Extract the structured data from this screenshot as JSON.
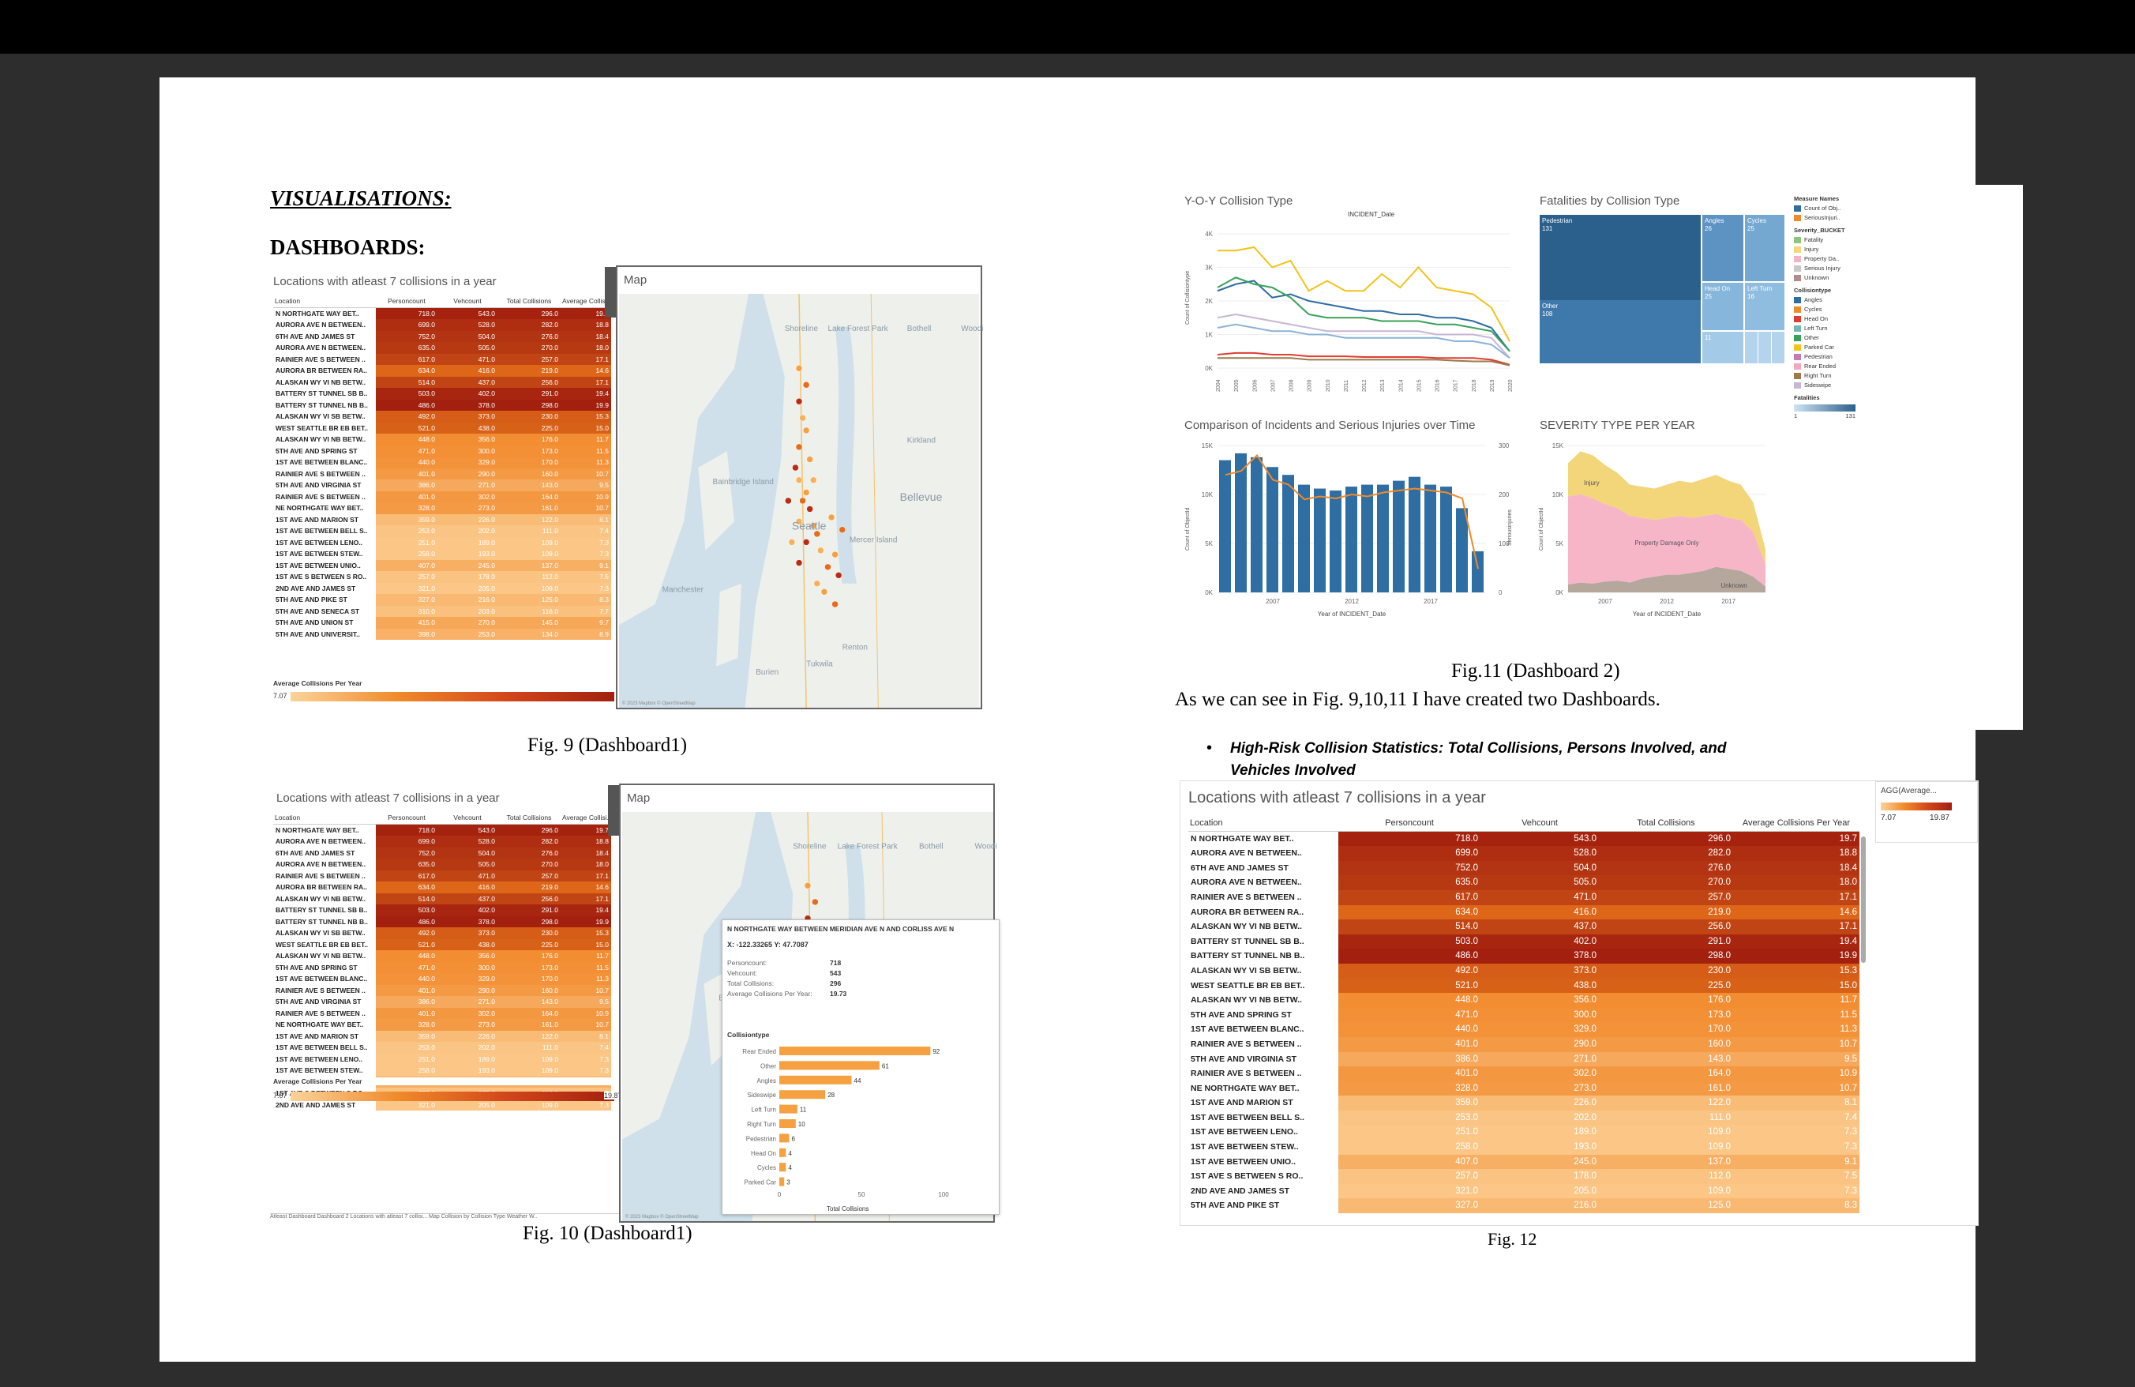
{
  "headings": {
    "visualisations": "VISUALISATIONS:",
    "dashboards": "DASHBOARDS:"
  },
  "captions": {
    "fig9": "Fig. 9 (Dashboard1)",
    "fig10": "Fig. 10 (Dashboard1)",
    "fig11": "Fig.11 (Dashboard 2)",
    "fig12": "Fig. 12",
    "body_text": "As we can see in Fig. 9,10,11 I have created two Dashboards.",
    "bullet": "High-Risk Collision Statistics: Total Collisions, Persons Involved, and Vehicles Involved"
  },
  "heatmap": {
    "title": "Locations with atleast 7 collisions in a year",
    "columns": [
      "Location",
      "Personcount",
      "Vehcount",
      "Total Collisions",
      "Average Collisions Per Year"
    ],
    "columns_short": [
      "Location",
      "Personcount",
      "Vehcount",
      "Total Collisions",
      "Average Collisi.."
    ],
    "rows": [
      [
        "N NORTHGATE WAY BET..",
        "718.0",
        "543.0",
        "296.0",
        "19.7"
      ],
      [
        "AURORA AVE N BETWEEN..",
        "699.0",
        "528.0",
        "282.0",
        "18.8"
      ],
      [
        "6TH AVE AND JAMES ST",
        "752.0",
        "504.0",
        "276.0",
        "18.4"
      ],
      [
        "AURORA AVE N BETWEEN..",
        "635.0",
        "505.0",
        "270.0",
        "18.0"
      ],
      [
        "RAINIER AVE S BETWEEN ..",
        "617.0",
        "471.0",
        "257.0",
        "17.1"
      ],
      [
        "AURORA BR BETWEEN RA..",
        "634.0",
        "416.0",
        "219.0",
        "14.6"
      ],
      [
        "ALASKAN WY VI NB BETW..",
        "514.0",
        "437.0",
        "256.0",
        "17.1"
      ],
      [
        "BATTERY ST TUNNEL SB B..",
        "503.0",
        "402.0",
        "291.0",
        "19.4"
      ],
      [
        "BATTERY ST TUNNEL NB B..",
        "486.0",
        "378.0",
        "298.0",
        "19.9"
      ],
      [
        "ALASKAN WY VI SB BETW..",
        "492.0",
        "373.0",
        "230.0",
        "15.3"
      ],
      [
        "WEST SEATTLE BR EB BET..",
        "521.0",
        "438.0",
        "225.0",
        "15.0"
      ],
      [
        "ALASKAN WY VI NB BETW..",
        "448.0",
        "356.0",
        "176.0",
        "11.7"
      ],
      [
        "5TH AVE AND SPRING ST",
        "471.0",
        "300.0",
        "173.0",
        "11.5"
      ],
      [
        "1ST AVE BETWEEN BLANC..",
        "440.0",
        "329.0",
        "170.0",
        "11.3"
      ],
      [
        "RAINIER AVE S BETWEEN ..",
        "401.0",
        "290.0",
        "160.0",
        "10.7"
      ],
      [
        "5TH AVE AND VIRGINIA ST",
        "386.0",
        "271.0",
        "143.0",
        "9.5"
      ],
      [
        "RAINIER AVE S BETWEEN ..",
        "401.0",
        "302.0",
        "164.0",
        "10.9"
      ],
      [
        "NE NORTHGATE WAY BET..",
        "328.0",
        "273.0",
        "161.0",
        "10.7"
      ],
      [
        "1ST AVE AND MARION ST",
        "359.0",
        "226.0",
        "122.0",
        "8.1"
      ],
      [
        "1ST AVE BETWEEN BELL S..",
        "253.0",
        "202.0",
        "111.0",
        "7.4"
      ],
      [
        "1ST AVE BETWEEN LENO..",
        "251.0",
        "189.0",
        "109.0",
        "7.3"
      ],
      [
        "1ST AVE BETWEEN STEW..",
        "258.0",
        "193.0",
        "109.0",
        "7.3"
      ],
      [
        "1ST AVE BETWEEN UNIO..",
        "407.0",
        "245.0",
        "137.0",
        "9.1"
      ],
      [
        "1ST AVE S BETWEEN S RO..",
        "257.0",
        "178.0",
        "112.0",
        "7.5"
      ],
      [
        "2ND AVE AND JAMES ST",
        "321.0",
        "205.0",
        "109.0",
        "7.3"
      ],
      [
        "5TH AVE AND PIKE ST",
        "327.0",
        "216.0",
        "125.0",
        "8.3"
      ],
      [
        "5TH AVE AND SENECA ST",
        "310.0",
        "203.0",
        "116.0",
        "7.7"
      ],
      [
        "5TH AVE AND UNION ST",
        "415.0",
        "270.0",
        "145.0",
        "9.7"
      ],
      [
        "5TH AVE AND UNIVERSIT..",
        "398.0",
        "253.0",
        "134.0",
        "8.9"
      ]
    ],
    "legend_title": "Average Collisions Per Year",
    "legend_min": "7.07",
    "legend_max": "19.87",
    "agg_title": "AGG(Average...",
    "colors": {
      "low": "#fbd39a",
      "mid": "#f08a2a",
      "high": "#a3200f"
    }
  },
  "map": {
    "title": "Map",
    "places": [
      "Shoreline",
      "Lake Forest Park",
      "Bothell",
      "Kirkland",
      "Bainbridge Island",
      "Bellevue",
      "Seattle",
      "Mercer Island",
      "Manchester",
      "Renton",
      "Burien",
      "Tukwila",
      "Woodi"
    ],
    "credit": "© 2023 Mapbox © OpenStreetMap"
  },
  "tooltip": {
    "title": "N NORTHGATE WAY BETWEEN MERIDIAN AVE N AND CORLISS AVE N",
    "coords": "X: -122.33265  Y: 47.7087",
    "fields": [
      {
        "label": "Personcount:",
        "value": "718"
      },
      {
        "label": "Vehcount:",
        "value": "543"
      },
      {
        "label": "Total Collisions:",
        "value": "296"
      },
      {
        "label": "Average Collisions Per Year:",
        "value": "19.73"
      }
    ],
    "bar_header": "Collisiontype",
    "bars": [
      {
        "label": "Rear Ended",
        "value": 92
      },
      {
        "label": "Other",
        "value": 61
      },
      {
        "label": "Angles",
        "value": 44
      },
      {
        "label": "Sideswipe",
        "value": 28
      },
      {
        "label": "Left Turn",
        "value": 11
      },
      {
        "label": "Right Turn",
        "value": 10
      },
      {
        "label": "Pedestrian",
        "value": 6
      },
      {
        "label": "Head On",
        "value": 4
      },
      {
        "label": "Cycles",
        "value": 4
      },
      {
        "label": "Parked Car",
        "value": 3
      }
    ],
    "axis_ticks": [
      "0",
      "50",
      "100"
    ],
    "axis_label": "Total Collisions"
  },
  "tabs_bottom": "Atleast Dashboard   Dashboard 2   Locations with atleast 7 collisi...   Map   Collision by Collision Type   Weather   W..",
  "dashboard2": {
    "yoy": {
      "title": "Y-O-Y Collision Type",
      "subtitle": "INCIDENT_Date",
      "ylabel": "Count of Collisiontype",
      "yticks": [
        "4K",
        "3K",
        "2K",
        "1K",
        "0K"
      ],
      "years": [
        "2004",
        "2005",
        "2006",
        "2007",
        "2008",
        "2009",
        "2010",
        "2011",
        "2012",
        "2013",
        "2014",
        "2015",
        "2016",
        "2017",
        "2018",
        "2019",
        "2020"
      ]
    },
    "fatalities": {
      "title": "Fatalities by Collision Type",
      "cells": [
        {
          "label": "Pedestrian",
          "value": "131"
        },
        {
          "label": "Angles",
          "value": "26"
        },
        {
          "label": "Cycles",
          "value": "25"
        },
        {
          "label": "Head On",
          "value": "25"
        },
        {
          "label": "Left Turn",
          "value": "16"
        },
        {
          "label": "Other",
          "value": "108"
        },
        {
          "label": "",
          "value": "11"
        }
      ]
    },
    "legend": {
      "measure_title": "Measure Names",
      "measures": [
        "Count of Obj..",
        "SeriousInjuri.."
      ],
      "severity_title": "Severity_BUCKET",
      "severity": [
        "Fatality",
        "Injury",
        "Property Da..",
        "Serious Injury",
        "Unknown"
      ],
      "ctype_title": "Collisiontype",
      "ctypes": [
        "Angles",
        "Cycles",
        "Head On",
        "Left Turn",
        "Other",
        "Parked Car",
        "Pedestrian",
        "Rear Ended",
        "Right Turn",
        "Sideswipe"
      ],
      "fatal_title": "Fatalities",
      "fatal_min": "1",
      "fatal_max": "131"
    },
    "comparison": {
      "title": "Comparison of Incidents and Serious Injuries over Time",
      "ylabel": "Count of ObjectId",
      "y2label": "Seriousinjuries",
      "yticks": [
        "15K",
        "10K",
        "5K",
        "0K"
      ],
      "y2ticks": [
        "300",
        "200",
        "100",
        "0"
      ],
      "xticks": [
        "2007",
        "2012",
        "2017"
      ],
      "xlabel": "Year of INCIDENT_Date"
    },
    "severity": {
      "title": "SEVERITY TYPE PER YEAR",
      "ylabel": "Count of ObjectId",
      "yticks": [
        "15K",
        "10K",
        "5K",
        "0K"
      ],
      "xticks": [
        "2007",
        "2012",
        "2017"
      ],
      "xlabel": "Year of INCIDENT_Date",
      "labels": [
        "Injury",
        "Property Damage Only",
        "Unknown"
      ]
    }
  }
}
